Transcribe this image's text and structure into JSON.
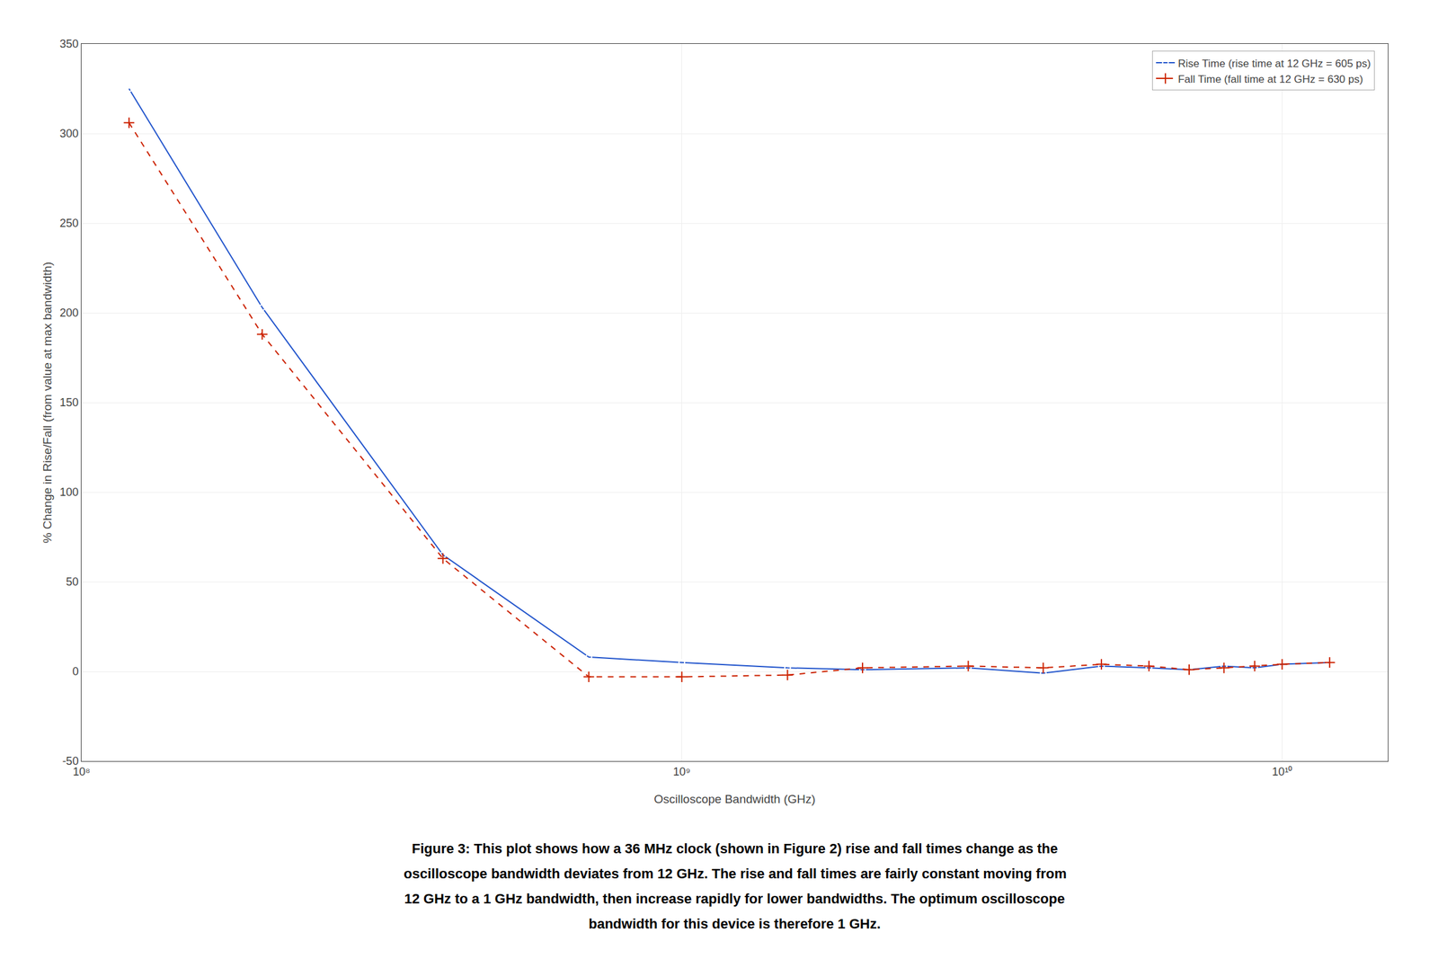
{
  "chart_data": {
    "type": "line",
    "x": [
      120000000.0,
      200000000.0,
      400000000.0,
      700000000.0,
      1000000000.0,
      1500000000.0,
      2000000000.0,
      3000000000.0,
      4000000000.0,
      5000000000.0,
      6000000000.0,
      7000000000.0,
      8000000000.0,
      9000000000.0,
      10000000000.0,
      12000000000.0
    ],
    "series": [
      {
        "name": "Rise Time (rise time at 12 GHz = 605 ps)",
        "color": "#2255cc",
        "marker": "circle",
        "line_style": "solid",
        "values": [
          325,
          203,
          65,
          8,
          5,
          2,
          1,
          2,
          -1,
          3,
          2,
          1,
          3,
          2,
          4,
          5
        ]
      },
      {
        "name": "Fall Time (fall time at 12 GHz = 630 ps)",
        "color": "#cc2200",
        "marker": "plus",
        "line_style": "dashed",
        "values": [
          306,
          188,
          63,
          -3,
          -3,
          -2,
          2,
          3,
          2,
          4,
          3,
          1,
          2,
          3,
          4,
          5
        ]
      }
    ],
    "xlabel": "Oscilloscope Bandwidth (GHz)",
    "ylabel": "% Change in Rise/Fall (from value at max bandwidth)",
    "log": "x",
    "xlim": [
      100000000.0,
      15000000000.0
    ],
    "xticks": [
      {
        "value": 100000000.0,
        "label": "10⁸"
      },
      {
        "value": 1000000000.0,
        "label": "10⁹"
      },
      {
        "value": 10000000000.0,
        "label": "10¹⁰"
      }
    ],
    "ylim": [
      -50,
      350
    ],
    "yticks": [
      -50,
      0,
      50,
      100,
      150,
      200,
      250,
      300,
      350
    ],
    "grid": true,
    "legend": "upper right",
    "annotations": [
      "Figure 3: This plot shows how a 36 MHz clock (shown in Figure 2) rise and fall times change as the",
      "oscilloscope bandwidth deviates from 12 GHz. The rise and fall times are fairly constant moving from",
      "12 GHz to a 1 GHz bandwidth, then increase rapidly for lower bandwidths. The optimum oscilloscope",
      "bandwidth for this device is therefore 1 GHz."
    ]
  }
}
